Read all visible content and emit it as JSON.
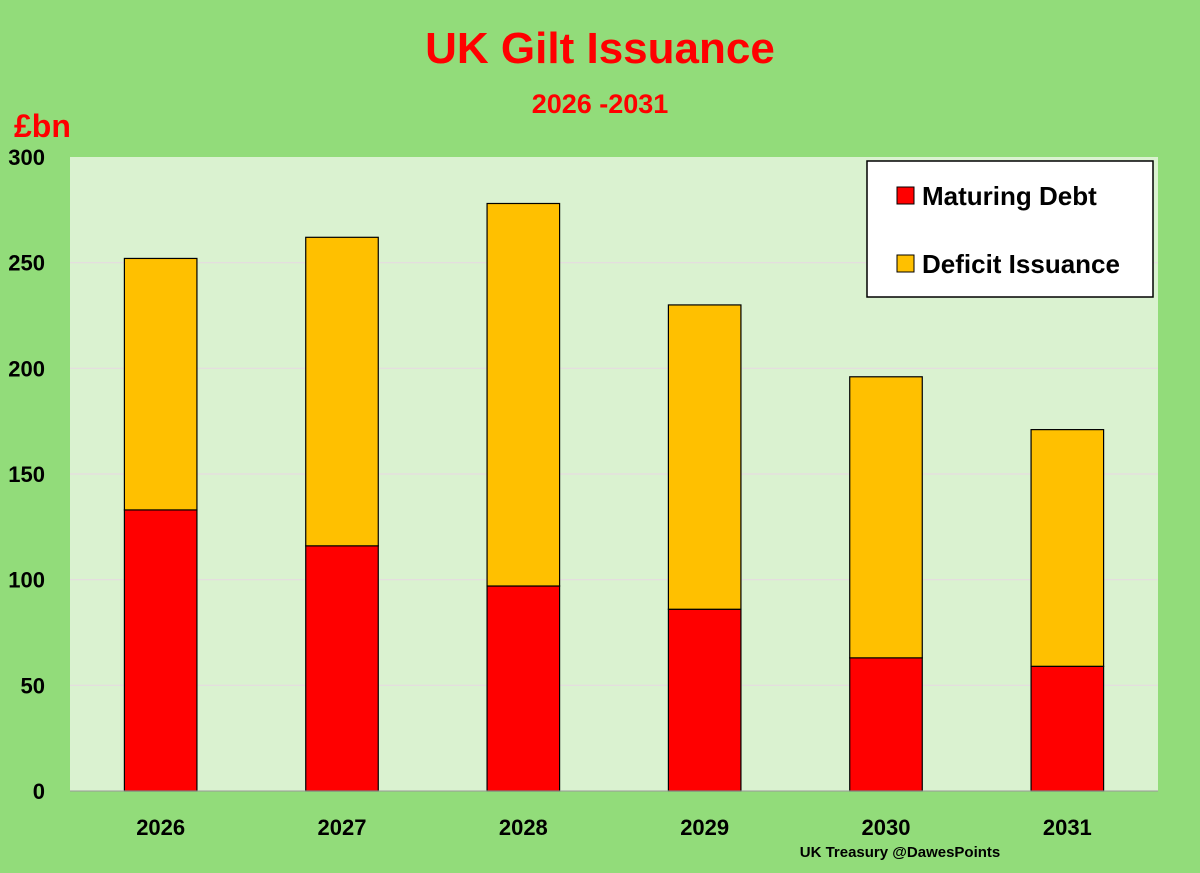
{
  "chart_data": {
    "type": "bar",
    "stacked": true,
    "title": "UK Gilt Issuance",
    "subtitle": "2026 -2031",
    "ylabel": "£bn",
    "xlabel": "",
    "categories": [
      "2026",
      "2027",
      "2028",
      "2029",
      "2030",
      "2031"
    ],
    "series": [
      {
        "name": "Maturing Debt",
        "color": "#ff0000",
        "values": [
          133,
          116,
          97,
          86,
          63,
          59
        ]
      },
      {
        "name": "Deficit Issuance",
        "color": "#ffc000",
        "values": [
          119,
          146,
          181,
          144,
          133,
          112
        ]
      }
    ],
    "ylim": [
      0,
      300
    ],
    "yticks": [
      "0",
      "50",
      "100",
      "150",
      "200",
      "250",
      "300"
    ],
    "grid": true,
    "legend_position": "top-right",
    "source": "UK Treasury @DawesPoints",
    "colors": {
      "background": "#92dc7a",
      "plot_background": "#daf2d0"
    }
  }
}
